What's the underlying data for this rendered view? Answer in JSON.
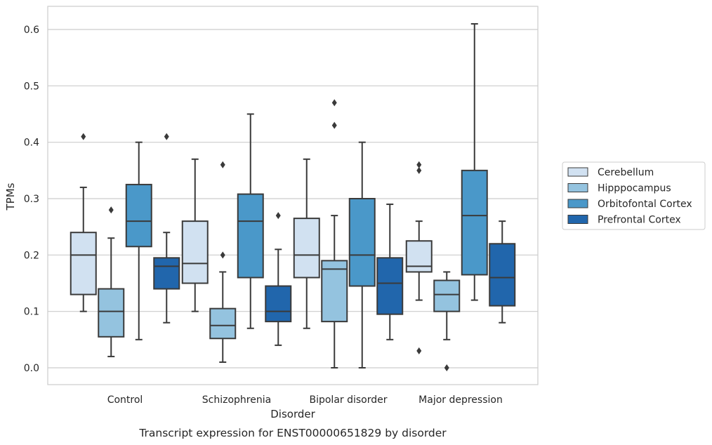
{
  "chart_data": {
    "type": "box",
    "caption": "Transcript expression for ENST00000651829 by disorder",
    "xlabel": "Disorder",
    "ylabel": "TPMs",
    "ylim": [
      -0.03,
      0.64
    ],
    "yticks": [
      0.0,
      0.1,
      0.2,
      0.3,
      0.4,
      0.5,
      0.6
    ],
    "ytick_labels": [
      "0.0",
      "0.1",
      "0.2",
      "0.3",
      "0.4",
      "0.5",
      "0.6"
    ],
    "grid": true,
    "legend_position": "right, outside plot",
    "categories": [
      "Control",
      "Schizophrenia",
      "Bipolar disorder",
      "Major depression"
    ],
    "series": [
      {
        "name": "Cerebellum",
        "color": "#d1e1f1",
        "boxes": [
          {
            "whisker_low": 0.1,
            "q1": 0.13,
            "median": 0.2,
            "q3": 0.24,
            "whisker_high": 0.32,
            "outliers": [
              0.41
            ]
          },
          {
            "whisker_low": 0.1,
            "q1": 0.15,
            "median": 0.185,
            "q3": 0.26,
            "whisker_high": 0.37,
            "outliers": []
          },
          {
            "whisker_low": 0.07,
            "q1": 0.16,
            "median": 0.2,
            "q3": 0.265,
            "whisker_high": 0.37,
            "outliers": []
          },
          {
            "whisker_low": 0.12,
            "q1": 0.17,
            "median": 0.18,
            "q3": 0.225,
            "whisker_high": 0.26,
            "outliers": [
              0.03,
              0.35,
              0.36
            ]
          }
        ]
      },
      {
        "name": "Hipppocampus",
        "color": "#94c3df",
        "boxes": [
          {
            "whisker_low": 0.02,
            "q1": 0.055,
            "median": 0.1,
            "q3": 0.14,
            "whisker_high": 0.23,
            "outliers": [
              0.28
            ]
          },
          {
            "whisker_low": 0.01,
            "q1": 0.052,
            "median": 0.075,
            "q3": 0.105,
            "whisker_high": 0.17,
            "outliers": [
              0.2,
              0.36
            ]
          },
          {
            "whisker_low": 0.0,
            "q1": 0.082,
            "median": 0.175,
            "q3": 0.19,
            "whisker_high": 0.27,
            "outliers": [
              0.43,
              0.47
            ]
          },
          {
            "whisker_low": 0.05,
            "q1": 0.1,
            "median": 0.13,
            "q3": 0.155,
            "whisker_high": 0.17,
            "outliers": [
              0.0
            ]
          }
        ]
      },
      {
        "name": "Orbitofontal Cortex",
        "color": "#4a98c9",
        "boxes": [
          {
            "whisker_low": 0.05,
            "q1": 0.215,
            "median": 0.26,
            "q3": 0.325,
            "whisker_high": 0.4,
            "outliers": []
          },
          {
            "whisker_low": 0.07,
            "q1": 0.16,
            "median": 0.26,
            "q3": 0.308,
            "whisker_high": 0.45,
            "outliers": []
          },
          {
            "whisker_low": 0.0,
            "q1": 0.145,
            "median": 0.2,
            "q3": 0.3,
            "whisker_high": 0.4,
            "outliers": []
          },
          {
            "whisker_low": 0.12,
            "q1": 0.165,
            "median": 0.27,
            "q3": 0.35,
            "whisker_high": 0.61,
            "outliers": []
          }
        ]
      },
      {
        "name": "Prefrontal Cortex",
        "color": "#2166ac",
        "boxes": [
          {
            "whisker_low": 0.08,
            "q1": 0.14,
            "median": 0.18,
            "q3": 0.195,
            "whisker_high": 0.24,
            "outliers": [
              0.41
            ]
          },
          {
            "whisker_low": 0.04,
            "q1": 0.082,
            "median": 0.1,
            "q3": 0.145,
            "whisker_high": 0.21,
            "outliers": [
              0.27
            ]
          },
          {
            "whisker_low": 0.05,
            "q1": 0.095,
            "median": 0.15,
            "q3": 0.195,
            "whisker_high": 0.29,
            "outliers": []
          },
          {
            "whisker_low": 0.08,
            "q1": 0.11,
            "median": 0.16,
            "q3": 0.22,
            "whisker_high": 0.26,
            "outliers": []
          }
        ]
      }
    ]
  }
}
